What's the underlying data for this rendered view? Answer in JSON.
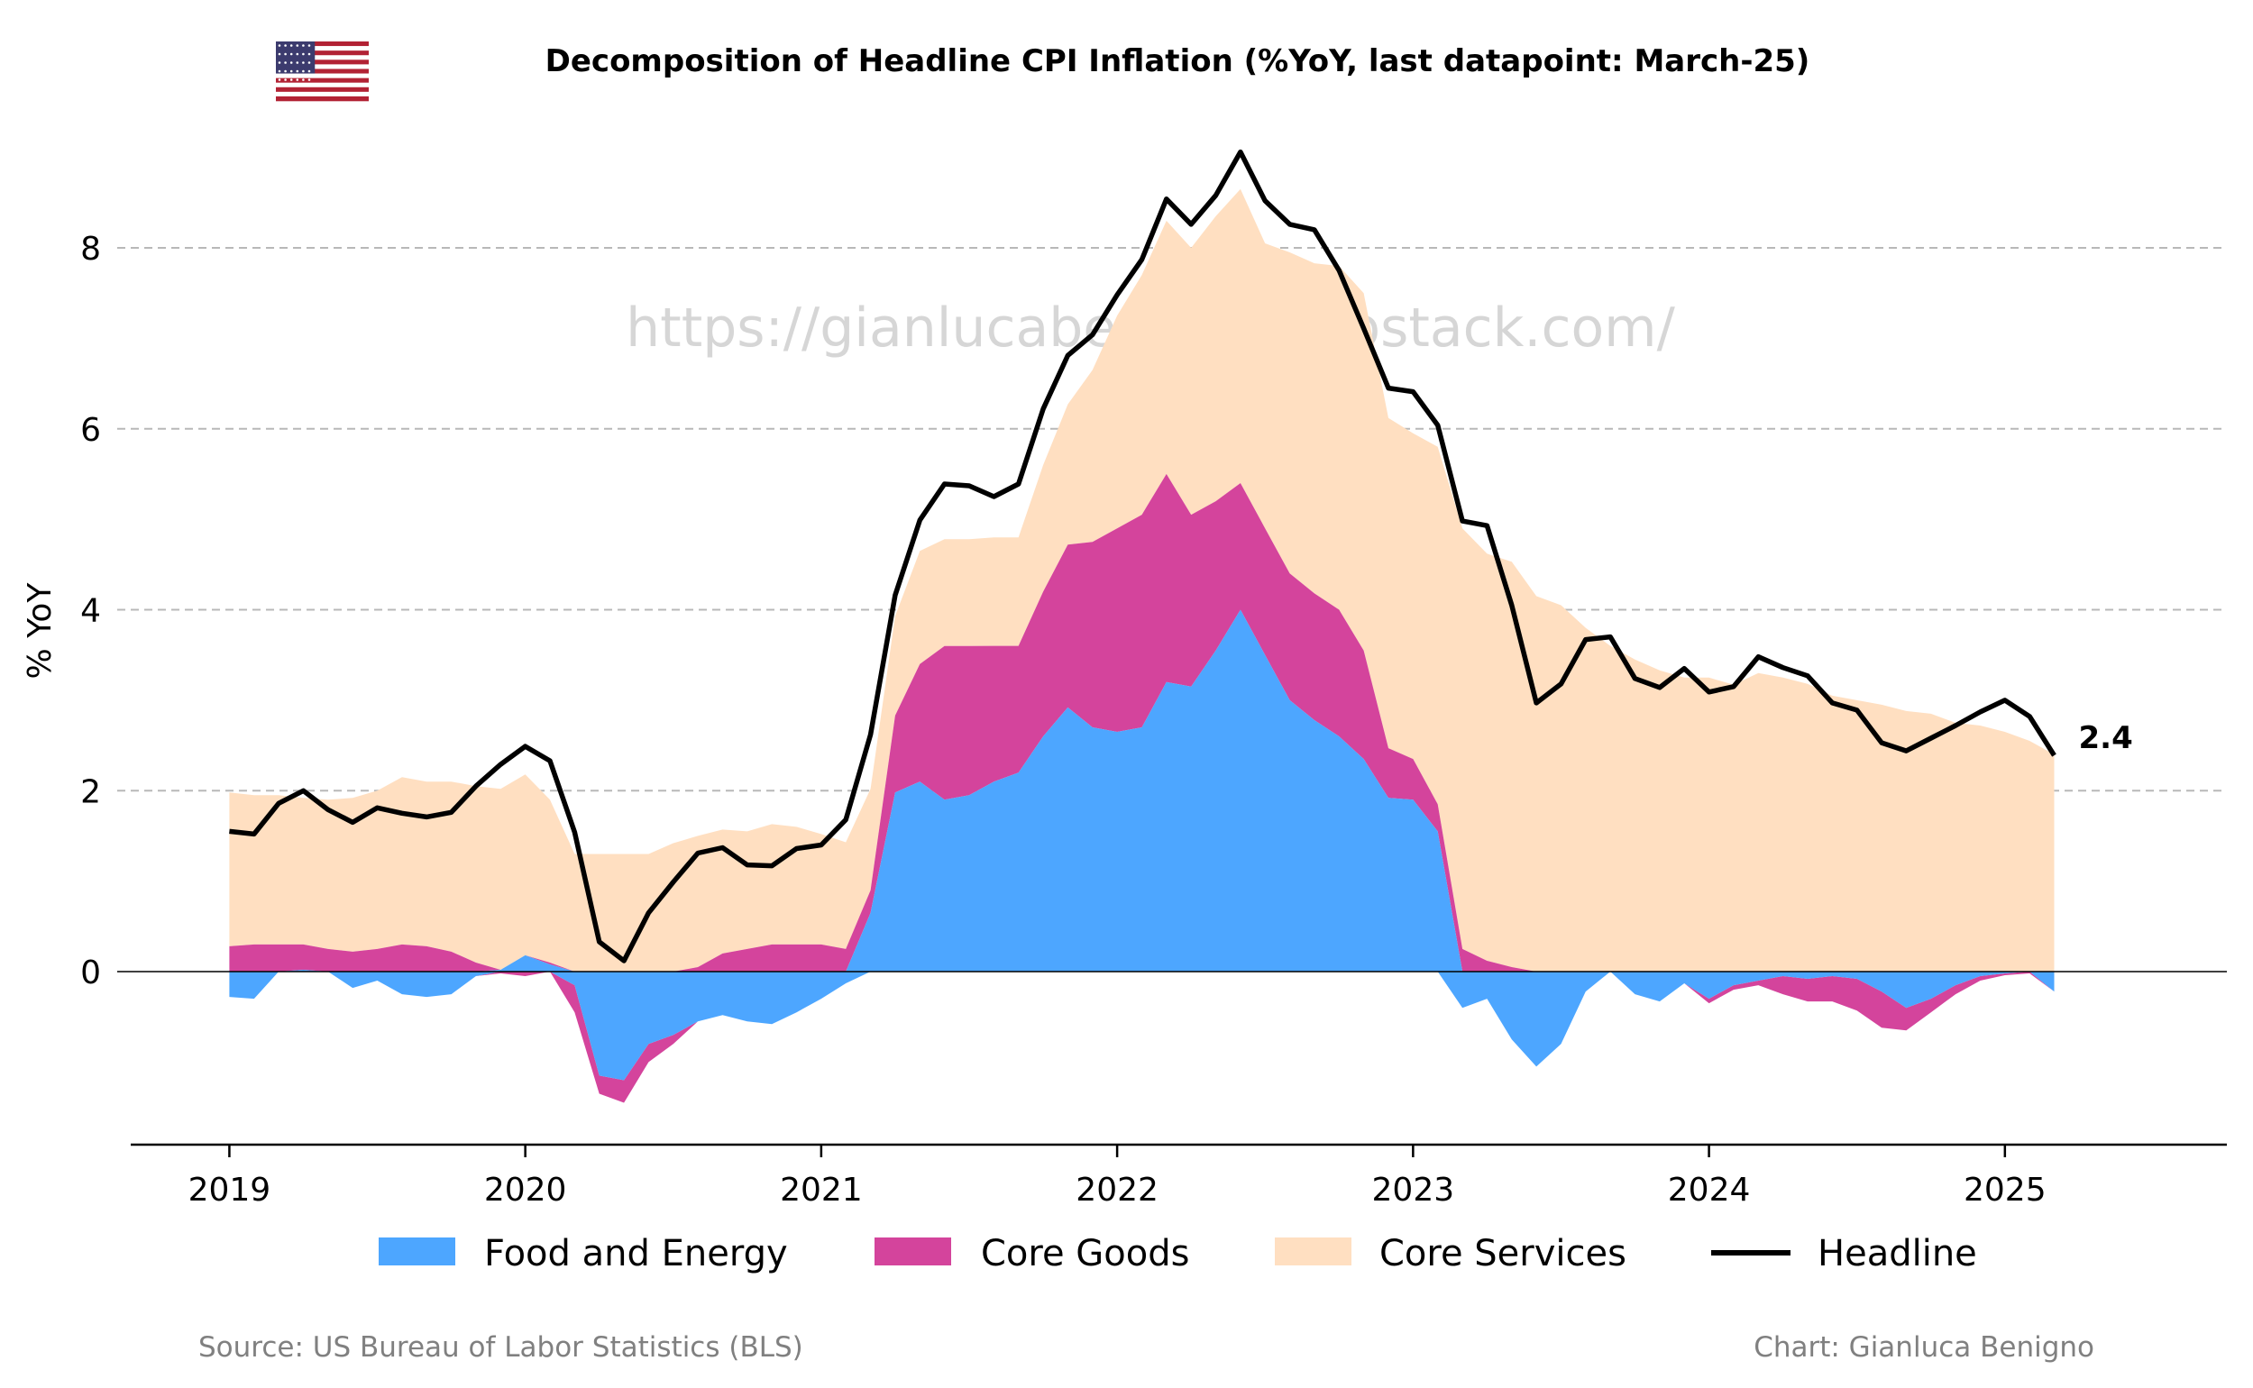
{
  "chart_data": {
    "type": "area",
    "title": "Decomposition of Headline CPI Inflation (%YoY, last datapoint: March-25)",
    "ylabel": "% YoY",
    "xlabel": "",
    "start": "2019-01",
    "x_ticks": [
      "2019",
      "2020",
      "2021",
      "2022",
      "2023",
      "2024",
      "2025"
    ],
    "y_ticks": [
      0,
      2,
      4,
      6,
      8
    ],
    "ylim": [
      -1.9,
      9.3
    ],
    "xlim": [
      "2018-09",
      "2025-10"
    ],
    "grid": "horizontal dashed",
    "legend_position": "bottom",
    "end_label": "2.4",
    "watermark": "https://gianlucabenigno.substack.com/",
    "source": "Source: US Bureau of Labor Statistics (BLS)",
    "credit": "Chart: Gianluca Benigno",
    "series": [
      {
        "name": "Food and Energy",
        "color": "#4da6ff",
        "values": [
          -0.28,
          -0.3,
          0.0,
          0.02,
          0.0,
          -0.18,
          -0.1,
          -0.25,
          -0.28,
          -0.25,
          -0.05,
          0.02,
          0.18,
          0.08,
          -0.15,
          -1.15,
          -1.2,
          -0.8,
          -0.7,
          -0.55,
          -0.48,
          -0.55,
          -0.58,
          -0.45,
          -0.3,
          -0.13,
          0.65,
          1.98,
          2.1,
          1.9,
          1.95,
          2.1,
          2.2,
          2.6,
          2.92,
          2.7,
          2.65,
          2.7,
          3.2,
          3.15,
          3.55,
          4.0,
          3.5,
          3.0,
          2.78,
          2.6,
          2.35,
          1.92,
          1.9,
          1.55,
          -0.4,
          -0.3,
          -0.75,
          -1.05,
          -0.8,
          -0.22,
          0.0,
          -0.25,
          -0.33,
          -0.13,
          -0.3,
          -0.15,
          -0.1,
          -0.05,
          -0.08,
          -0.05,
          -0.08,
          -0.22,
          -0.4,
          -0.3,
          -0.15,
          -0.05,
          -0.02,
          0.0,
          -0.22
        ]
      },
      {
        "name": "Core Goods",
        "color": "#d4449c",
        "values": [
          0.28,
          0.3,
          0.3,
          0.28,
          0.25,
          0.22,
          0.25,
          0.3,
          0.28,
          0.22,
          0.1,
          -0.02,
          -0.05,
          0.02,
          -0.3,
          -0.2,
          -0.25,
          -0.2,
          -0.1,
          0.05,
          0.2,
          0.25,
          0.3,
          0.3,
          0.3,
          0.25,
          0.25,
          0.85,
          1.3,
          1.7,
          1.65,
          1.5,
          1.4,
          1.6,
          1.8,
          2.05,
          2.25,
          2.35,
          2.3,
          1.9,
          1.65,
          1.4,
          1.4,
          1.4,
          1.4,
          1.4,
          1.2,
          0.55,
          0.45,
          0.3,
          0.25,
          0.12,
          0.05,
          0.0,
          0.0,
          0.0,
          0.0,
          0.0,
          0.0,
          0.0,
          -0.05,
          -0.05,
          -0.05,
          -0.2,
          -0.25,
          -0.28,
          -0.35,
          -0.4,
          -0.25,
          -0.15,
          -0.1,
          -0.05,
          -0.02,
          -0.02,
          0.0
        ]
      },
      {
        "name": "Core Services",
        "color": "#ffdfc1",
        "values": [
          1.7,
          1.65,
          1.65,
          1.62,
          1.65,
          1.7,
          1.75,
          1.85,
          1.82,
          1.88,
          1.95,
          2.0,
          2.0,
          1.8,
          1.3,
          1.3,
          1.3,
          1.3,
          1.42,
          1.45,
          1.37,
          1.3,
          1.33,
          1.3,
          1.22,
          1.18,
          1.12,
          1.1,
          1.25,
          1.18,
          1.18,
          1.2,
          1.2,
          1.4,
          1.55,
          1.9,
          2.35,
          2.65,
          2.8,
          2.95,
          3.15,
          3.25,
          3.15,
          3.55,
          3.65,
          3.8,
          3.95,
          3.65,
          3.6,
          3.95,
          4.65,
          4.5,
          4.48,
          4.15,
          4.05,
          3.8,
          3.6,
          3.45,
          3.33,
          3.25,
          3.25,
          3.17,
          3.3,
          3.25,
          3.18,
          3.05,
          3.0,
          2.95,
          2.88,
          2.85,
          2.75,
          2.72,
          2.65,
          2.55,
          2.4
        ]
      },
      {
        "name": "Headline",
        "color": "#000000",
        "values": [
          1.55,
          1.52,
          1.86,
          2.0,
          1.79,
          1.65,
          1.81,
          1.75,
          1.71,
          1.76,
          2.05,
          2.29,
          2.49,
          2.33,
          1.54,
          0.33,
          0.12,
          0.65,
          0.99,
          1.31,
          1.37,
          1.18,
          1.17,
          1.36,
          1.4,
          1.68,
          2.62,
          4.16,
          4.99,
          5.39,
          5.37,
          5.25,
          5.39,
          6.22,
          6.81,
          7.04,
          7.48,
          7.87,
          8.54,
          8.26,
          8.58,
          9.06,
          8.52,
          8.26,
          8.2,
          7.75,
          7.11,
          6.45,
          6.41,
          6.04,
          4.98,
          4.93,
          4.05,
          2.97,
          3.18,
          3.67,
          3.7,
          3.24,
          3.14,
          3.35,
          3.09,
          3.15,
          3.48,
          3.36,
          3.27,
          2.97,
          2.89,
          2.53,
          2.44,
          2.58,
          2.72,
          2.87,
          3.0,
          2.82,
          2.39
        ]
      }
    ]
  }
}
